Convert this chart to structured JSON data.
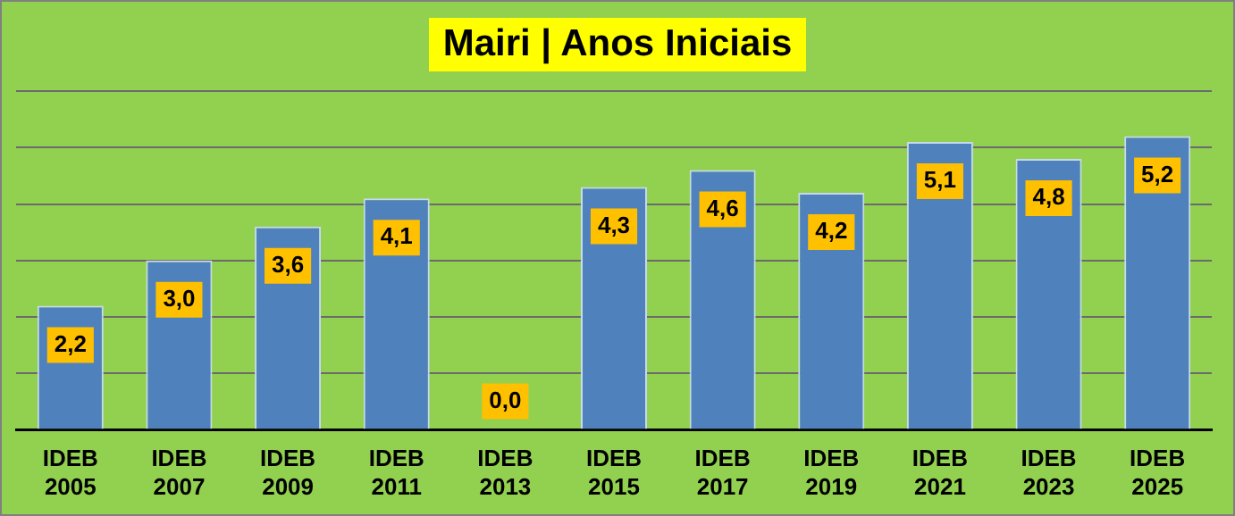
{
  "chart_data": {
    "type": "bar",
    "title": "Mairi | Anos Iniciais",
    "categories": [
      "IDEB 2005",
      "IDEB 2007",
      "IDEB 2009",
      "IDEB 2011",
      "IDEB 2013",
      "IDEB 2015",
      "IDEB 2017",
      "IDEB 2019",
      "IDEB 2021",
      "IDEB 2023",
      "IDEB 2025"
    ],
    "values": [
      2.2,
      3.0,
      3.6,
      4.1,
      0.0,
      4.3,
      4.6,
      4.2,
      5.1,
      4.8,
      5.2
    ],
    "value_labels": [
      "2,2",
      "3,0",
      "3,6",
      "4,1",
      "0,0",
      "4,3",
      "4,6",
      "4,2",
      "5,1",
      "4,8",
      "5,2"
    ],
    "color": "#4f81bd",
    "ylim": [
      0,
      6
    ],
    "yticks": [
      {
        "value": 0,
        "label": null
      },
      {
        "value": 1,
        "label": null
      },
      {
        "value": 2,
        "label": null
      },
      {
        "value": 3,
        "label": null
      },
      {
        "value": 4,
        "label": null
      },
      {
        "value": 5,
        "label": null
      },
      {
        "value": 6,
        "label": null
      }
    ],
    "grid": "y",
    "tick_labels": "x",
    "legend": false
  }
}
